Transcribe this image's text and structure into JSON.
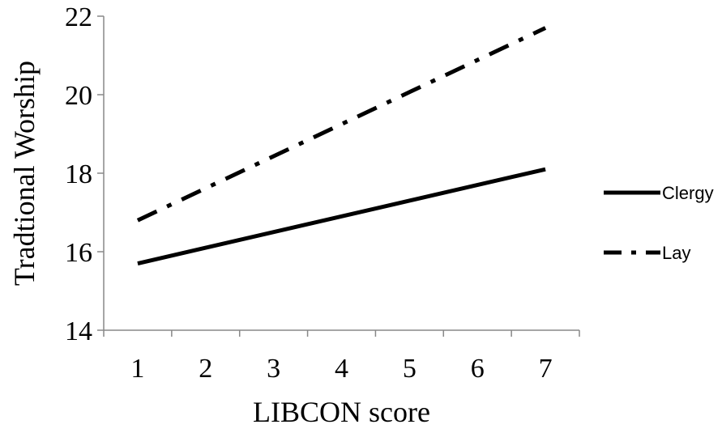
{
  "chart_data": {
    "type": "line",
    "xlabel": "LIBCON score",
    "ylabel": "Tradtional Worship",
    "x": [
      1,
      2,
      3,
      4,
      5,
      6,
      7
    ],
    "x_tick_labels": [
      "1",
      "2",
      "3",
      "4",
      "5",
      "6",
      "7"
    ],
    "ylim": [
      14,
      22
    ],
    "y_ticks": [
      14,
      16,
      18,
      20,
      22
    ],
    "y_tick_labels": [
      "14",
      "16",
      "18",
      "20",
      "22"
    ],
    "grid": false,
    "legend_position": "right",
    "series": [
      {
        "name": "Clergy",
        "style": "solid",
        "color": "#000000",
        "x": [
          1,
          7
        ],
        "y": [
          15.7,
          18.1
        ]
      },
      {
        "name": "Lay",
        "style": "dash-dot",
        "color": "#000000",
        "x": [
          1,
          7
        ],
        "y": [
          16.8,
          21.7
        ]
      }
    ]
  }
}
